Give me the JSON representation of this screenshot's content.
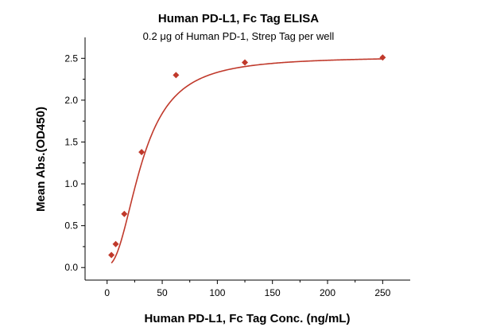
{
  "chart_data": {
    "type": "scatter",
    "title": "Human PD-L1, Fc Tag ELISA",
    "subtitle": "0.2 μg of Human PD-1, Strep Tag per well",
    "xlabel": "Human PD-L1, Fc Tag Conc. (ng/mL)",
    "ylabel": "Mean Abs.(OD450)",
    "xlim": [
      -20,
      275
    ],
    "ylim": [
      -0.15,
      2.75
    ],
    "xticks": [
      0,
      50,
      100,
      150,
      200,
      250
    ],
    "yticks": [
      0.0,
      0.5,
      1.0,
      1.5,
      2.0,
      2.5
    ],
    "xtick_labels": [
      "0",
      "50",
      "100",
      "150",
      "200",
      "250"
    ],
    "ytick_labels": [
      "0.0",
      "0.5",
      "1.0",
      "1.5",
      "2.0",
      "2.5"
    ],
    "grid": false,
    "legend": "none",
    "series": [
      {
        "marker": "diamond",
        "color": "#c0392b",
        "x": [
          3.9,
          7.8,
          15.6,
          31.3,
          62.5,
          125,
          250
        ],
        "y": [
          0.15,
          0.28,
          0.64,
          1.38,
          2.3,
          2.45,
          2.51
        ]
      }
    ],
    "fit_curve": {
      "type": "4PL",
      "color": "#c0392b",
      "bottom": 0.03,
      "top": 2.52,
      "ec50": 32,
      "hill": 2.2
    }
  }
}
